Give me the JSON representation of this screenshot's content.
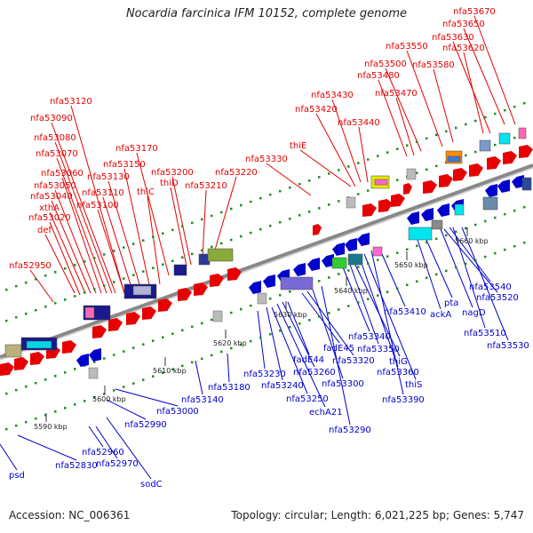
{
  "title": "Nocardia farcinica IFM 10152, complete genome",
  "footer": {
    "accession": "Accession: NC_006361",
    "summary": "Topology: circular; Length: 6,021,225 bp; Genes: 5,747"
  },
  "colors": {
    "forward": "#e60000",
    "reverse": "#0000cc",
    "backbone": "#999999"
  },
  "ticks": [
    "5590 kbp",
    "5600 kbp",
    "5610 kbp",
    "5620 kbp",
    "5630 kbp",
    "5640 kbp",
    "5650 kbp",
    "5660 kbp"
  ],
  "forward_labels": [
    "nfa52950",
    "def",
    "nfa53020",
    "xthA",
    "nfa53040",
    "nfa53050",
    "nfa53060",
    "nfa53070",
    "nfa53080",
    "nfa53090",
    "nfa53120",
    "nfa53100",
    "nfa53110",
    "nfa53130",
    "nfa53150",
    "thiC",
    "nfa53170",
    "thiD",
    "nfa53200",
    "nfa53210",
    "nfa53220",
    "nfa53330",
    "thiE",
    "nfa53420",
    "nfa53430",
    "nfa53440",
    "nfa53470",
    "nfa53480",
    "nfa53500",
    "nfa53550",
    "nfa53580",
    "nfa53620",
    "nfa53630",
    "nfa53650",
    "nfa53670"
  ],
  "reverse_labels": [
    "psd",
    "nfa52830",
    "nfa52960",
    "nfa52970",
    "sodC",
    "nfa52990",
    "nfa53000",
    "nfa53140",
    "nfa53180",
    "nfa53230",
    "nfa53240",
    "nfa53250",
    "echA21",
    "nfa53260",
    "fadE44",
    "fadE45",
    "nfa53320",
    "nfa53300",
    "nfa53290",
    "nfa53340",
    "nfa53350",
    "thiG",
    "nfa53360",
    "thiS",
    "nfa53390",
    "nfa53410",
    "ackA",
    "pta",
    "nagD",
    "nfa53520",
    "nfa53540",
    "nfa53510",
    "nfa53530"
  ]
}
